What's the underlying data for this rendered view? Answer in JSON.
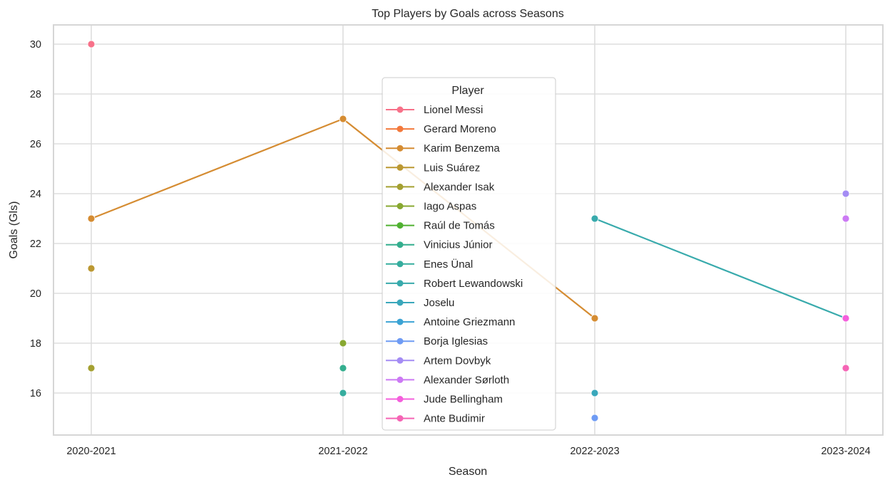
{
  "chart_data": {
    "type": "line",
    "title": "Top Players by Goals across Seasons",
    "xlabel": "Season",
    "ylabel": "Goals (Gls)",
    "categories": [
      "2020-2021",
      "2021-2022",
      "2022-2023",
      "2023-2024"
    ],
    "yticks": [
      16,
      18,
      20,
      22,
      24,
      26,
      28,
      30
    ],
    "ylim": [
      14.7,
      30.8
    ],
    "grid": true,
    "legend_title": "Player",
    "legend_position": "center",
    "series": [
      {
        "name": "Lionel Messi",
        "color": "#f77189",
        "values": [
          30,
          null,
          null,
          null
        ]
      },
      {
        "name": "Gerard Moreno",
        "color": "#f3793c",
        "values": [
          null,
          null,
          null,
          null
        ]
      },
      {
        "name": "Karim Benzema",
        "color": "#d58c32",
        "values": [
          23,
          27,
          19,
          null
        ]
      },
      {
        "name": "Luis Suárez",
        "color": "#bb9832",
        "values": [
          21,
          null,
          null,
          null
        ]
      },
      {
        "name": "Alexander Isak",
        "color": "#a4a031",
        "values": [
          17,
          null,
          null,
          null
        ]
      },
      {
        "name": "Iago Aspas",
        "color": "#88a831",
        "values": [
          null,
          18,
          null,
          null
        ]
      },
      {
        "name": "Raúl de Tomás",
        "color": "#50b131",
        "values": [
          null,
          null,
          null,
          null
        ]
      },
      {
        "name": "Vinicius Júnior",
        "color": "#34ae8e",
        "values": [
          null,
          17,
          null,
          null
        ]
      },
      {
        "name": "Enes Ünal",
        "color": "#36ad9e",
        "values": [
          null,
          16,
          null,
          null
        ]
      },
      {
        "name": "Robert Lewandowski",
        "color": "#38aaac",
        "values": [
          null,
          null,
          23,
          19
        ]
      },
      {
        "name": "Joselu",
        "color": "#39a7bb",
        "values": [
          null,
          null,
          16,
          null
        ]
      },
      {
        "name": "Antoine Griezmann",
        "color": "#3ba3d4",
        "values": [
          null,
          null,
          null,
          null
        ]
      },
      {
        "name": "Borja Iglesias",
        "color": "#6e9bf4",
        "values": [
          null,
          null,
          15,
          null
        ]
      },
      {
        "name": "Artem Dovbyk",
        "color": "#a48cf4",
        "values": [
          null,
          null,
          null,
          24
        ]
      },
      {
        "name": "Alexander Sørloth",
        "color": "#cc7af4",
        "values": [
          null,
          null,
          null,
          23
        ]
      },
      {
        "name": "Jude Bellingham",
        "color": "#f45fdc",
        "values": [
          null,
          null,
          null,
          19
        ]
      },
      {
        "name": "Ante Budimir",
        "color": "#f565b5",
        "values": [
          null,
          null,
          null,
          17
        ]
      }
    ]
  }
}
